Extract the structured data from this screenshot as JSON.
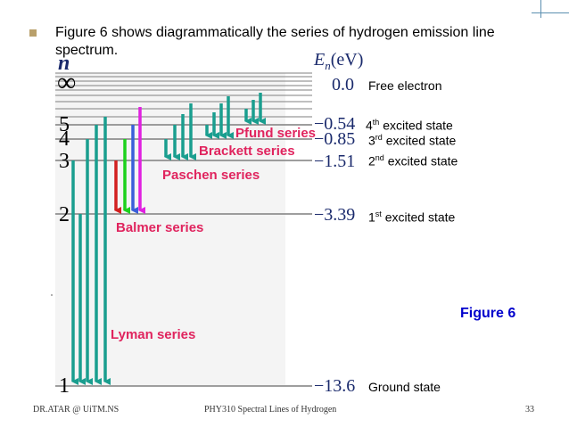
{
  "slide": {
    "bullet_text": "Figure 6 shows diagrammatically the series of hydrogen emission line spectrum.",
    "figure_label": "Figure  6",
    "footer_left": "DR.ATAR @ UiTM.NS",
    "footer_center": "PHY310 Spectral Lines of Hydrogen",
    "footer_right": "33"
  },
  "diagram": {
    "n_label": "n",
    "energy_header": "E",
    "energy_header_sub": "n",
    "energy_header_unit": "(eV)",
    "levels": [
      {
        "n": "∞",
        "energy": "0.0",
        "state": "Free electron",
        "sup": ""
      },
      {
        "n": "5",
        "energy": "−0.54",
        "state": " excited state",
        "prefix": "4",
        "sup": "th"
      },
      {
        "n": "4",
        "energy": "−0.85",
        "state": " excited state",
        "prefix": "3",
        "sup": "rd"
      },
      {
        "n": "3",
        "energy": "−1.51",
        "state": " excited state",
        "prefix": "2",
        "sup": "nd"
      },
      {
        "n": "2",
        "energy": "−3.39",
        "state": " excited state",
        "prefix": "1",
        "sup": "st"
      },
      {
        "n": "1",
        "energy": "−13.6",
        "state": "Ground state",
        "sup": ""
      }
    ],
    "series": {
      "lyman": "Lyman series",
      "balmer": "Balmer series",
      "paschen": "Paschen series",
      "brackett": "Brackett series",
      "pfund": "Pfund series"
    },
    "colors": {
      "teal": "#1a9e8f",
      "series_label": "#e0245e",
      "red": "#d21f1f",
      "green": "#1dd11d",
      "blue": "#3a5fd9",
      "magenta": "#e020e0",
      "figure_label": "#0000cc"
    }
  }
}
